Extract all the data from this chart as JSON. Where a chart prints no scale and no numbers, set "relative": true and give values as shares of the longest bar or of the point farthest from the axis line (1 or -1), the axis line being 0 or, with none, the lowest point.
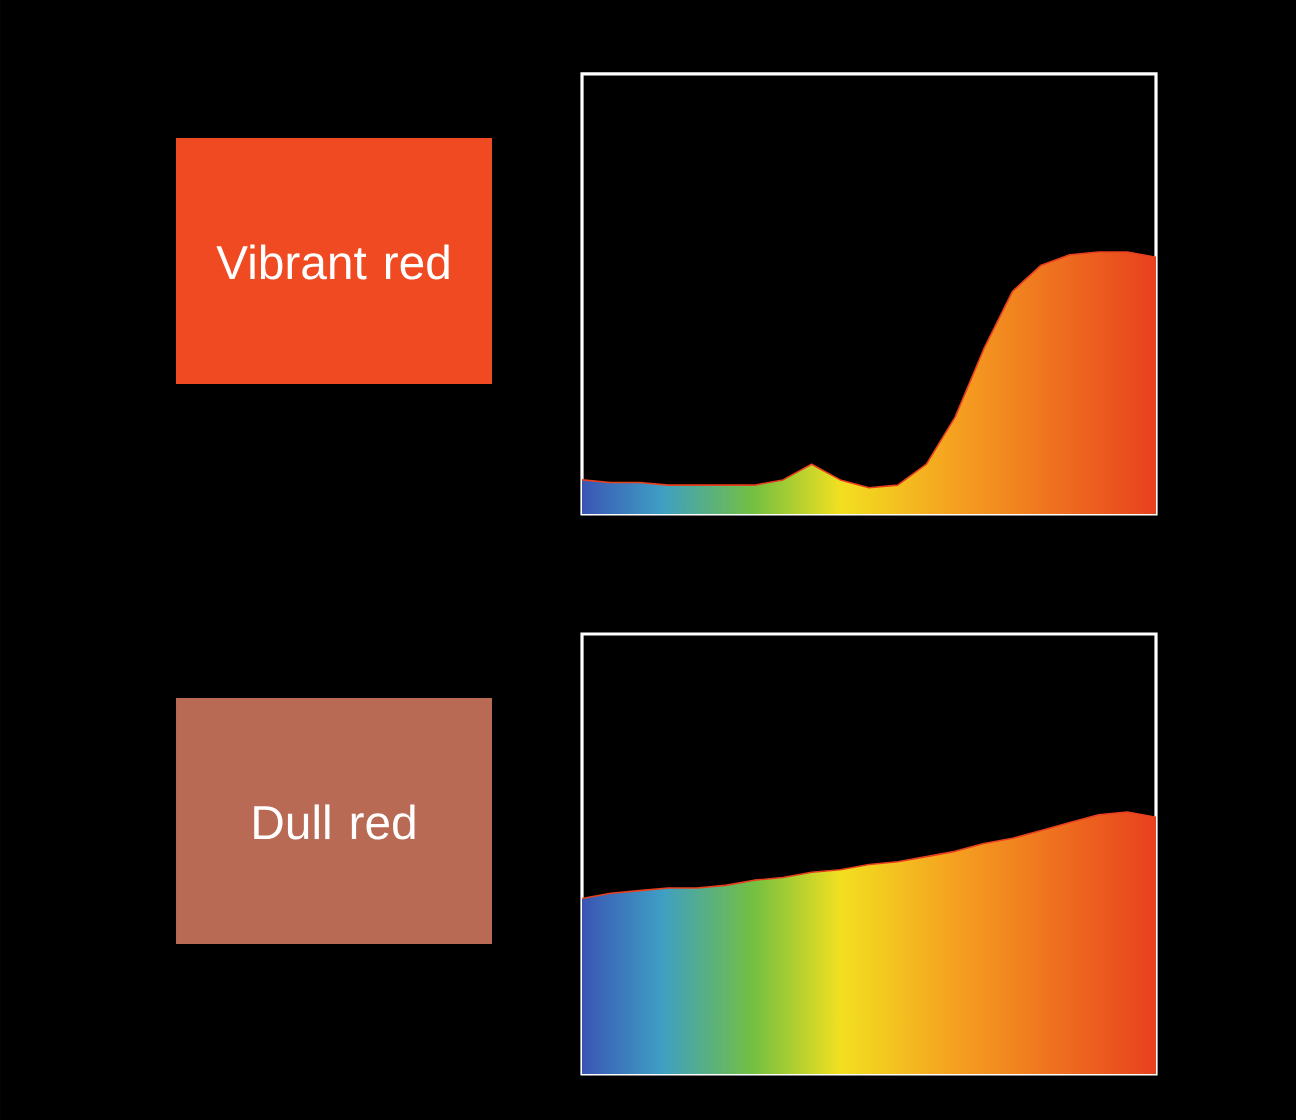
{
  "chart_data": [
    {
      "type": "area",
      "title": "Vibrant red",
      "relative": true,
      "categories": [
        null,
        null,
        null,
        null,
        null,
        null,
        null,
        null,
        null,
        null,
        null,
        null,
        null,
        null,
        null,
        null,
        null,
        null,
        null,
        null,
        null
      ],
      "series": [
        {
          "color": "#e8401e",
          "values": [
            0.13,
            0.12,
            0.12,
            0.11,
            0.11,
            0.11,
            0.11,
            0.13,
            0.19,
            0.13,
            0.1,
            0.11,
            0.19,
            0.37,
            0.63,
            0.85,
            0.95,
            0.99,
            1,
            1,
            0.98
          ]
        }
      ]
    },
    {
      "type": "area",
      "title": "Dull red",
      "relative": true,
      "categories": [
        null,
        null,
        null,
        null,
        null,
        null,
        null,
        null,
        null,
        null,
        null,
        null,
        null,
        null,
        null,
        null,
        null,
        null,
        null,
        null,
        null
      ],
      "series": [
        {
          "color": "#e8401e",
          "values": [
            0.67,
            0.69,
            0.7,
            0.71,
            0.71,
            0.72,
            0.74,
            0.75,
            0.77,
            0.78,
            0.8,
            0.81,
            0.83,
            0.85,
            0.88,
            0.9,
            0.93,
            0.96,
            0.99,
            1,
            0.98
          ]
        }
      ]
    }
  ]
}
